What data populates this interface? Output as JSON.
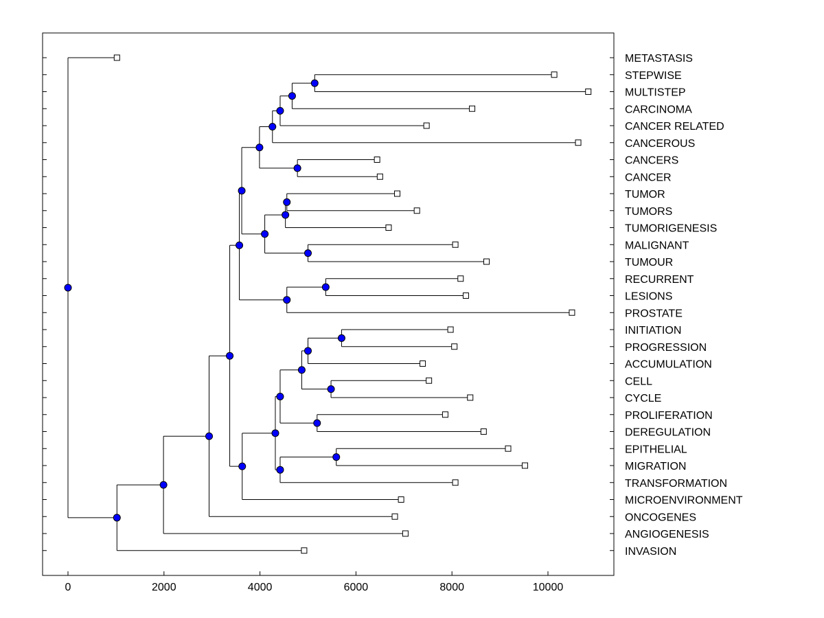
{
  "chart_data": {
    "type": "dendrogram",
    "orientation": "left-to-right",
    "title": "",
    "xlabel": "",
    "ylabel": "",
    "xlim": [
      -500,
      11400
    ],
    "xticks": [
      0,
      2000,
      4000,
      6000,
      8000,
      10000
    ],
    "xtick_labels": [
      "0",
      "2000",
      "4000",
      "6000",
      "8000",
      "10000"
    ],
    "grid": false,
    "node_color": "#0000ff",
    "line_color": "#000000",
    "leaves": [
      {
        "label": "METASTASIS",
        "x": 1020
      },
      {
        "label": "STEPWISE",
        "x": 10130
      },
      {
        "label": "MULTISTEP",
        "x": 10840
      },
      {
        "label": "CARCINOMA",
        "x": 8420
      },
      {
        "label": "CANCER RELATED",
        "x": 7470
      },
      {
        "label": "CANCEROUS",
        "x": 10630
      },
      {
        "label": "CANCERS",
        "x": 6440
      },
      {
        "label": "CANCER",
        "x": 6500
      },
      {
        "label": "TUMOR",
        "x": 6860
      },
      {
        "label": "TUMORS",
        "x": 7270
      },
      {
        "label": "TUMORIGENESIS",
        "x": 6680
      },
      {
        "label": "MALIGNANT",
        "x": 8070
      },
      {
        "label": "TUMOUR",
        "x": 8720
      },
      {
        "label": "RECURRENT",
        "x": 8180
      },
      {
        "label": "LESIONS",
        "x": 8290
      },
      {
        "label": "PROSTATE",
        "x": 10500
      },
      {
        "label": "INITIATION",
        "x": 7970
      },
      {
        "label": "PROGRESSION",
        "x": 8050
      },
      {
        "label": "ACCUMULATION",
        "x": 7390
      },
      {
        "label": "CELL",
        "x": 7520
      },
      {
        "label": "CYCLE",
        "x": 8380
      },
      {
        "label": "PROLIFERATION",
        "x": 7860
      },
      {
        "label": "DEREGULATION",
        "x": 8660
      },
      {
        "label": "EPITHELIAL",
        "x": 9170
      },
      {
        "label": "MIGRATION",
        "x": 9520
      },
      {
        "label": "TRANSFORMATION",
        "x": 8070
      },
      {
        "label": "MICROENVIRONMENT",
        "x": 6940
      },
      {
        "label": "ONCOGENES",
        "x": 6810
      },
      {
        "label": "ANGIOGENESIS",
        "x": 7030
      },
      {
        "label": "INVASION",
        "x": 4920
      }
    ],
    "merges": [
      {
        "id": "n1",
        "x": 5140,
        "children": [
          "L1",
          "L2"
        ]
      },
      {
        "id": "n2",
        "x": 4670,
        "children": [
          "n1",
          "L3"
        ]
      },
      {
        "id": "n3",
        "x": 4420,
        "children": [
          "n2",
          "L4"
        ]
      },
      {
        "id": "n4",
        "x": 4260,
        "children": [
          "n3",
          "L5"
        ]
      },
      {
        "id": "n5",
        "x": 4780,
        "children": [
          "L6",
          "L7"
        ]
      },
      {
        "id": "n6",
        "x": 3990,
        "children": [
          "n4",
          "n5"
        ]
      },
      {
        "id": "n7",
        "x": 4560,
        "children": [
          "L8",
          "L9"
        ]
      },
      {
        "id": "n8",
        "x": 4530,
        "children": [
          "n7",
          "L10"
        ]
      },
      {
        "id": "n9",
        "x": 5000,
        "children": [
          "L11",
          "L12"
        ]
      },
      {
        "id": "n10",
        "x": 4100,
        "children": [
          "n8",
          "n9"
        ]
      },
      {
        "id": "n11",
        "x": 3620,
        "children": [
          "n6",
          "n10"
        ]
      },
      {
        "id": "n12",
        "x": 5370,
        "children": [
          "L13",
          "L14"
        ]
      },
      {
        "id": "n13",
        "x": 4560,
        "children": [
          "n12",
          "L15"
        ]
      },
      {
        "id": "n14",
        "x": 3570,
        "children": [
          "n11",
          "n13"
        ]
      },
      {
        "id": "n15",
        "x": 5700,
        "children": [
          "L16",
          "L17"
        ]
      },
      {
        "id": "n16",
        "x": 5000,
        "children": [
          "n15",
          "L18"
        ]
      },
      {
        "id": "n17",
        "x": 5480,
        "children": [
          "L19",
          "L20"
        ]
      },
      {
        "id": "n18",
        "x": 4870,
        "children": [
          "n16",
          "n17"
        ]
      },
      {
        "id": "n19",
        "x": 5190,
        "children": [
          "L21",
          "L22"
        ]
      },
      {
        "id": "n20",
        "x": 4420,
        "children": [
          "n18",
          "n19"
        ]
      },
      {
        "id": "n21",
        "x": 5590,
        "children": [
          "L23",
          "L24"
        ]
      },
      {
        "id": "n22",
        "x": 4420,
        "children": [
          "n21",
          "L25"
        ]
      },
      {
        "id": "n23",
        "x": 4320,
        "children": [
          "n20",
          "n22"
        ]
      },
      {
        "id": "n24",
        "x": 3630,
        "children": [
          "n23",
          "L26"
        ]
      },
      {
        "id": "n25",
        "x": 3370,
        "children": [
          "n14",
          "n24"
        ]
      },
      {
        "id": "n26",
        "x": 2940,
        "children": [
          "n25",
          "L27"
        ]
      },
      {
        "id": "n27",
        "x": 1990,
        "children": [
          "n26",
          "L28"
        ]
      },
      {
        "id": "n28",
        "x": 1020,
        "children": [
          "n27",
          "L29"
        ]
      },
      {
        "id": "n29",
        "x": 0,
        "children": [
          "L0",
          "n28"
        ]
      }
    ]
  }
}
